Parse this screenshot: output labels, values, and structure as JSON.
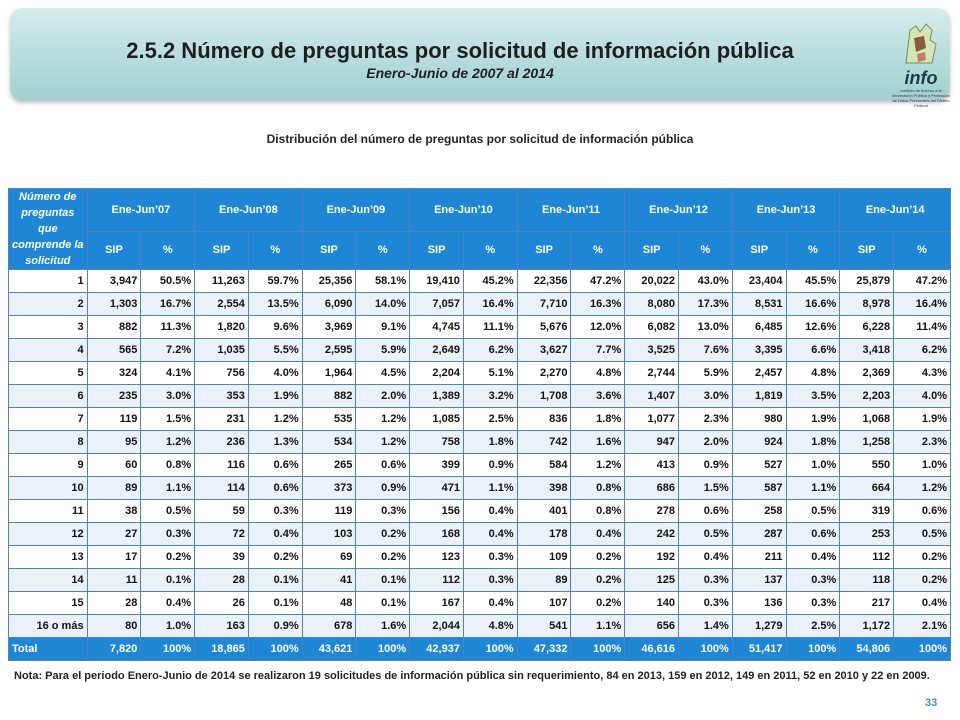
{
  "header": {
    "title": "2.5.2 Número de preguntas por solicitud de información pública",
    "subtitle": "Enero-Junio de 2007 al 2014",
    "logo_text": "info",
    "logo_small_text": "Instituto de Acceso a la Información Pública y Protección de Datos Personales del Distrito Federal"
  },
  "table_caption": "Distribución del número de preguntas por solicitud de información pública",
  "table": {
    "label_header": "Número de preguntas que comprende la solicitud",
    "years": [
      "Ene-Jun’07",
      "Ene-Jun’08",
      "Ene-Jun’09",
      "Ene-Jun’10",
      "Ene-Jun’11",
      "Ene-Jun’12",
      "Ene-Jun’13",
      "Ene-Jun’14"
    ],
    "sub_headers": [
      "SIP",
      "%"
    ],
    "rows": [
      {
        "label": "1",
        "values": [
          "3,947",
          "50.5%",
          "11,263",
          "59.7%",
          "25,356",
          "58.1%",
          "19,410",
          "45.2%",
          "22,356",
          "47.2%",
          "20,022",
          "43.0%",
          "23,404",
          "45.5%",
          "25,879",
          "47.2%"
        ]
      },
      {
        "label": "2",
        "values": [
          "1,303",
          "16.7%",
          "2,554",
          "13.5%",
          "6,090",
          "14.0%",
          "7,057",
          "16.4%",
          "7,710",
          "16.3%",
          "8,080",
          "17.3%",
          "8,531",
          "16.6%",
          "8,978",
          "16.4%"
        ]
      },
      {
        "label": "3",
        "values": [
          "882",
          "11.3%",
          "1,820",
          "9.6%",
          "3,969",
          "9.1%",
          "4,745",
          "11.1%",
          "5,676",
          "12.0%",
          "6,082",
          "13.0%",
          "6,485",
          "12.6%",
          "6,228",
          "11.4%"
        ]
      },
      {
        "label": "4",
        "values": [
          "565",
          "7.2%",
          "1,035",
          "5.5%",
          "2,595",
          "5.9%",
          "2,649",
          "6.2%",
          "3,627",
          "7.7%",
          "3,525",
          "7.6%",
          "3,395",
          "6.6%",
          "3,418",
          "6.2%"
        ]
      },
      {
        "label": "5",
        "values": [
          "324",
          "4.1%",
          "756",
          "4.0%",
          "1,964",
          "4.5%",
          "2,204",
          "5.1%",
          "2,270",
          "4.8%",
          "2,744",
          "5.9%",
          "2,457",
          "4.8%",
          "2,369",
          "4.3%"
        ]
      },
      {
        "label": "6",
        "values": [
          "235",
          "3.0%",
          "353",
          "1.9%",
          "882",
          "2.0%",
          "1,389",
          "3.2%",
          "1,708",
          "3.6%",
          "1,407",
          "3.0%",
          "1,819",
          "3.5%",
          "2,203",
          "4.0%"
        ]
      },
      {
        "label": "7",
        "values": [
          "119",
          "1.5%",
          "231",
          "1.2%",
          "535",
          "1.2%",
          "1,085",
          "2.5%",
          "836",
          "1.8%",
          "1,077",
          "2.3%",
          "980",
          "1.9%",
          "1,068",
          "1.9%"
        ]
      },
      {
        "label": "8",
        "values": [
          "95",
          "1.2%",
          "236",
          "1.3%",
          "534",
          "1.2%",
          "758",
          "1.8%",
          "742",
          "1.6%",
          "947",
          "2.0%",
          "924",
          "1.8%",
          "1,258",
          "2.3%"
        ]
      },
      {
        "label": "9",
        "values": [
          "60",
          "0.8%",
          "116",
          "0.6%",
          "265",
          "0.6%",
          "399",
          "0.9%",
          "584",
          "1.2%",
          "413",
          "0.9%",
          "527",
          "1.0%",
          "550",
          "1.0%"
        ]
      },
      {
        "label": "10",
        "values": [
          "89",
          "1.1%",
          "114",
          "0.6%",
          "373",
          "0.9%",
          "471",
          "1.1%",
          "398",
          "0.8%",
          "686",
          "1.5%",
          "587",
          "1.1%",
          "664",
          "1.2%"
        ]
      },
      {
        "label": "11",
        "values": [
          "38",
          "0.5%",
          "59",
          "0.3%",
          "119",
          "0.3%",
          "156",
          "0.4%",
          "401",
          "0.8%",
          "278",
          "0.6%",
          "258",
          "0.5%",
          "319",
          "0.6%"
        ]
      },
      {
        "label": "12",
        "values": [
          "27",
          "0.3%",
          "72",
          "0.4%",
          "103",
          "0.2%",
          "168",
          "0.4%",
          "178",
          "0.4%",
          "242",
          "0.5%",
          "287",
          "0.6%",
          "253",
          "0.5%"
        ]
      },
      {
        "label": "13",
        "values": [
          "17",
          "0.2%",
          "39",
          "0.2%",
          "69",
          "0.2%",
          "123",
          "0.3%",
          "109",
          "0.2%",
          "192",
          "0.4%",
          "211",
          "0.4%",
          "112",
          "0.2%"
        ]
      },
      {
        "label": "14",
        "values": [
          "11",
          "0.1%",
          "28",
          "0.1%",
          "41",
          "0.1%",
          "112",
          "0.3%",
          "89",
          "0.2%",
          "125",
          "0.3%",
          "137",
          "0.3%",
          "118",
          "0.2%"
        ]
      },
      {
        "label": "15",
        "values": [
          "28",
          "0.4%",
          "26",
          "0.1%",
          "48",
          "0.1%",
          "167",
          "0.4%",
          "107",
          "0.2%",
          "140",
          "0.3%",
          "136",
          "0.3%",
          "217",
          "0.4%"
        ]
      },
      {
        "label": "16 o más",
        "values": [
          "80",
          "1.0%",
          "163",
          "0.9%",
          "678",
          "1.6%",
          "2,044",
          "4.8%",
          "541",
          "1.1%",
          "656",
          "1.4%",
          "1,279",
          "2.5%",
          "1,172",
          "2.1%"
        ]
      }
    ],
    "total": {
      "label": "Total",
      "values": [
        "7,820",
        "100%",
        "18,865",
        "100%",
        "43,621",
        "100%",
        "42,937",
        "100%",
        "47,332",
        "100%",
        "46,616",
        "100%",
        "51,417",
        "100%",
        "54,806",
        "100%"
      ]
    }
  },
  "note": "Nota: Para el periodo Enero-Junio de 2014 se realizaron 19 solicitudes de información pública sin requerimiento, 84 en 2013, 159 en 2012, 149 en 2011,  52 en 2010 y 22 en 2009.",
  "page_number": "33",
  "colors": {
    "header_blue": "#1f86d6",
    "banner_teal": "#b8dcdc",
    "page_number": "#3c8fc6"
  }
}
